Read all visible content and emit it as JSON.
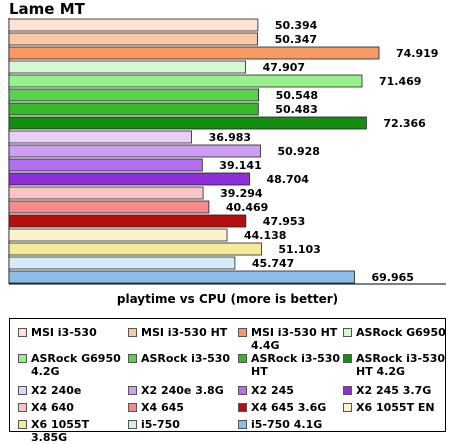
{
  "chart_data": {
    "type": "bar",
    "orientation": "horizontal",
    "title": "Lame MT",
    "xlabel": "playtime vs CPU (more is better)",
    "xlim": [
      0,
      80
    ],
    "grid": false,
    "legend_position": "bottom",
    "categories": [
      "MSI i3-530",
      "MSI i3-530 HT",
      "MSI i3-530 HT 4.4G",
      "ASRock G6950",
      "ASRock G6950 4.2G",
      "ASRock i3-530",
      "ASRock i3-530 HT",
      "ASRock i3-530 HT 4.2G",
      "X2 240e",
      "X2 240e 3.8G",
      "X2 245",
      "X2 245 3.7G",
      "X4 640",
      "X4 645",
      "X4 645 3.6G",
      "X6 1055T EN",
      "X6 1055T 3.85G",
      "i5-750",
      "i5-750 4.1G"
    ],
    "values": [
      50.394,
      50.347,
      74.919,
      47.907,
      71.469,
      50.548,
      50.483,
      72.366,
      36.983,
      50.928,
      39.141,
      48.704,
      39.294,
      40.469,
      47.953,
      44.138,
      51.103,
      45.747,
      69.965
    ],
    "value_labels": [
      "50.394",
      "50.347",
      "74.919",
      "47.907",
      "71.469",
      "50.548",
      "50.483",
      "72.366",
      "36.983",
      "50.928",
      "39.141",
      "48.704",
      "39.294",
      "40.469",
      "47.953",
      "44.138",
      "51.103",
      "45.747",
      "69.965"
    ],
    "colors": [
      "#fde3d3",
      "#fcc7a6",
      "#f99a65",
      "#d7f7d4",
      "#98f08d",
      "#5ed04f",
      "#37b82b",
      "#158d10",
      "#e7cff8",
      "#cba0f4",
      "#b36ff0",
      "#8d2fd8",
      "#fbc4c4",
      "#f58a8a",
      "#b50f0f",
      "#fbf3cc",
      "#f5e99a",
      "#d6ebf8",
      "#8cbde9"
    ]
  }
}
